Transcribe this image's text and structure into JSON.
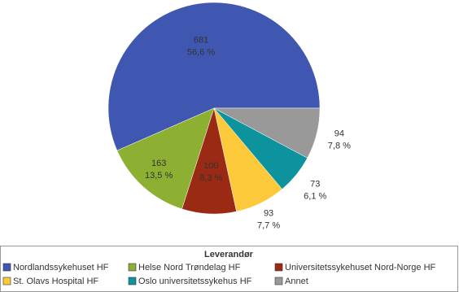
{
  "chart_data": {
    "type": "pie",
    "categories": [
      "Nordlandssykehuset HF",
      "Helse Nord Trøndelag HF",
      "Universitetssykehuset Nord-Norge HF",
      "St. Olavs Hospital HF",
      "Oslo universitetssykehus HF",
      "Annet"
    ],
    "values": [
      681,
      163,
      100,
      93,
      73,
      94
    ],
    "shares": [
      56.6,
      13.5,
      8.3,
      7.7,
      6.1,
      7.8
    ],
    "share_labels": [
      "56,6 %",
      "13,5 %",
      "8,3 %",
      "7,7 %",
      "6,1 %",
      "7,8 %"
    ],
    "colors": [
      "#3f57b0",
      "#8db032",
      "#9b2a14",
      "#fcc93a",
      "#0c939e",
      "#999999"
    ],
    "legend_title": "Leverandør",
    "legend": "bottom"
  }
}
